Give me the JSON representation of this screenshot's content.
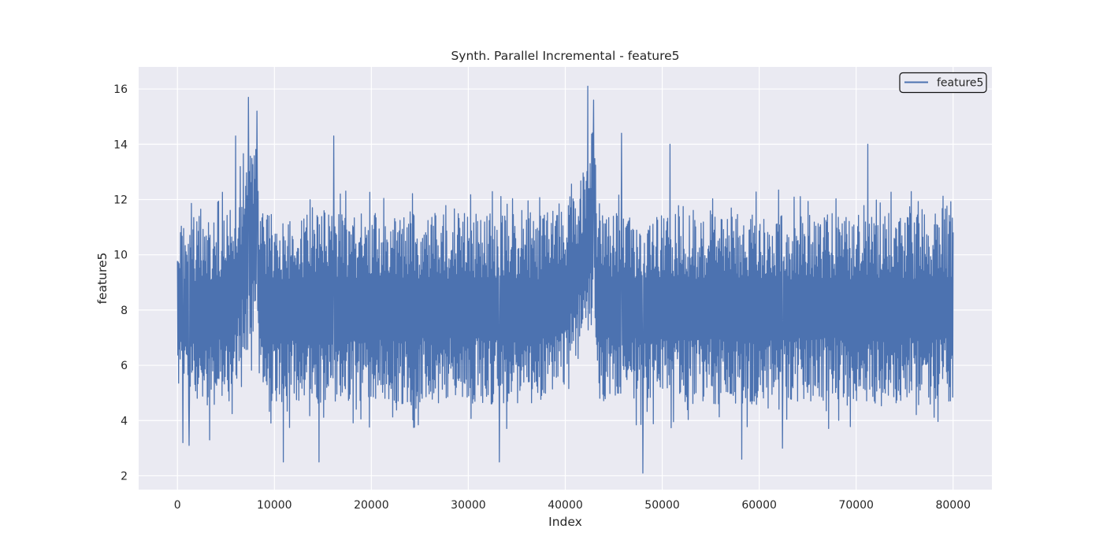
{
  "chart_data": {
    "type": "line",
    "title": "Synth. Parallel Incremental - feature5",
    "xlabel": "Index",
    "ylabel": "feature5",
    "xlim": [
      -4000,
      84000
    ],
    "ylim": [
      1.5,
      16.8
    ],
    "xticks": [
      0,
      10000,
      20000,
      30000,
      40000,
      50000,
      60000,
      70000,
      80000
    ],
    "yticks": [
      2,
      4,
      6,
      8,
      10,
      12,
      14,
      16
    ],
    "grid": true,
    "legend": {
      "position": "top-right",
      "entries": [
        "feature5"
      ]
    },
    "colors": {
      "series": "#4c72b0",
      "background": "#eaeaf2",
      "grid": "#ffffff"
    },
    "series": [
      {
        "name": "feature5",
        "n_points": 80000,
        "x_range": [
          0,
          80000
        ],
        "baseline_mean": 8.4,
        "envelope": {
          "x": [
            0,
            500,
            2000,
            4000,
            5500,
            6500,
            7500,
            8300,
            8400,
            12000,
            20000,
            30000,
            38000,
            40000,
            41500,
            42500,
            43100,
            43300,
            50000,
            60000,
            70000,
            80000
          ],
          "low_typical": [
            5.0,
            4.9,
            4.6,
            4.5,
            5.0,
            6.0,
            6.6,
            6.8,
            4.7,
            4.6,
            4.6,
            4.6,
            4.6,
            5.3,
            6.6,
            7.2,
            7.4,
            4.7,
            4.6,
            4.6,
            4.6,
            4.6
          ],
          "high_typical": [
            11.2,
            11.3,
            11.4,
            11.5,
            11.9,
            12.6,
            13.6,
            14.0,
            11.5,
            11.5,
            11.5,
            11.5,
            11.5,
            11.8,
            12.6,
            13.5,
            14.0,
            11.5,
            11.5,
            11.5,
            11.5,
            11.5
          ]
        },
        "notable_peaks": [
          {
            "x": 6000,
            "y": 14.3
          },
          {
            "x": 7300,
            "y": 15.7
          },
          {
            "x": 8200,
            "y": 15.2
          },
          {
            "x": 16100,
            "y": 14.3
          },
          {
            "x": 42300,
            "y": 16.1
          },
          {
            "x": 42900,
            "y": 15.6
          },
          {
            "x": 45800,
            "y": 14.4
          },
          {
            "x": 50800,
            "y": 14.0
          },
          {
            "x": 71200,
            "y": 14.0
          }
        ],
        "notable_troughs": [
          {
            "x": 550,
            "y": 3.2
          },
          {
            "x": 1200,
            "y": 3.1
          },
          {
            "x": 3300,
            "y": 3.3
          },
          {
            "x": 10900,
            "y": 2.5
          },
          {
            "x": 14600,
            "y": 2.5
          },
          {
            "x": 33200,
            "y": 2.5
          },
          {
            "x": 48000,
            "y": 2.1
          },
          {
            "x": 58200,
            "y": 2.6
          },
          {
            "x": 62400,
            "y": 3.0
          }
        ]
      }
    ]
  }
}
